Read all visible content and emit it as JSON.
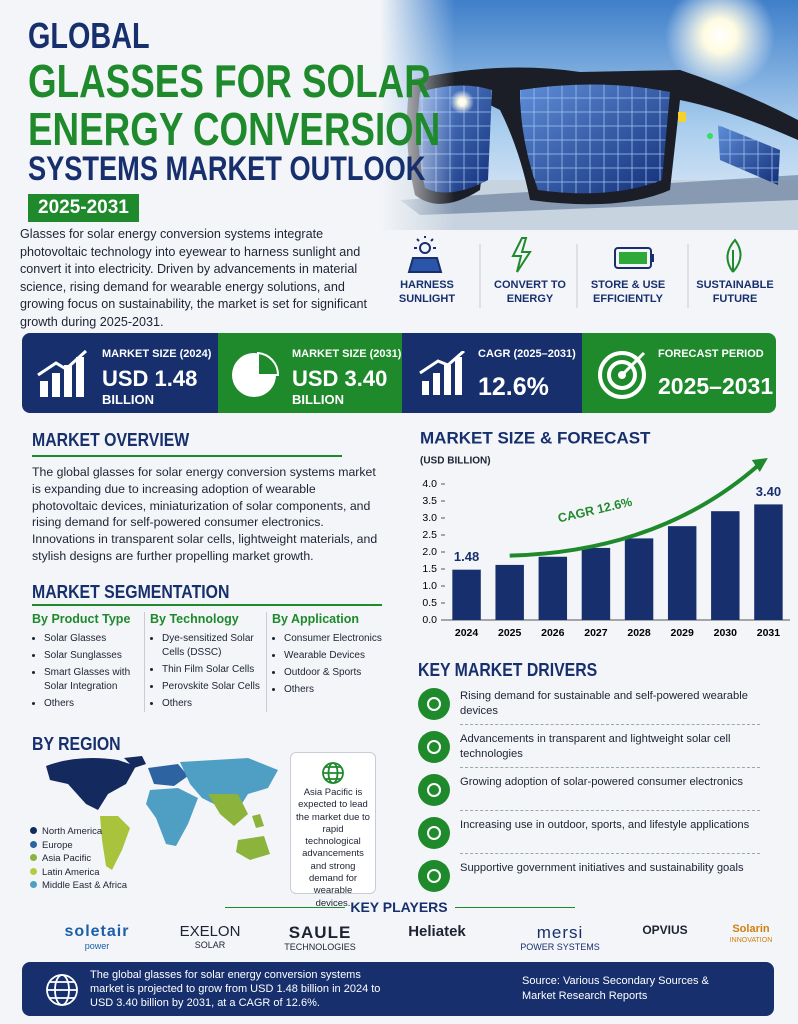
{
  "header": {
    "title_lines": [
      "GLOBAL",
      "GLASSES FOR SOLAR",
      "ENERGY CONVERSION",
      "SYSTEMS MARKET OUTLOOK"
    ],
    "period": "2025-2031",
    "intro": "Glasses for solar energy conversion systems integrate photovoltaic technology into eyewear to harness sunlight and convert it into electricity. Driven by advancements in material science, rising demand for wearable energy solutions, and growing focus on sustainability, the market is set for significant growth during 2025-2031."
  },
  "features": [
    "HARNESS SUNLIGHT",
    "CONVERT TO ENERGY",
    "STORE & USE EFFICIENTLY",
    "SUSTAINABLE FUTURE"
  ],
  "stats": [
    {
      "label": "MARKET SIZE (2024)",
      "value": "USD 1.48",
      "unit": "BILLION"
    },
    {
      "label": "MARKET SIZE (2031)",
      "value": "USD 3.40",
      "unit": "BILLION"
    },
    {
      "label": "CAGR (2025–2031)",
      "value": "12.6%"
    },
    {
      "label": "FORECAST PERIOD",
      "value": "2025–2031"
    }
  ],
  "overview": {
    "title": "MARKET OVERVIEW",
    "text": "The global glasses for solar energy conversion systems market is expanding due to increasing adoption of wearable photovoltaic devices, miniaturization of solar components, and rising demand for self-powered consumer electronics. Innovations in transparent solar cells, lightweight materials, and stylish designs are further propelling market growth."
  },
  "segmentation": {
    "title": "MARKET SEGMENTATION",
    "columns": [
      {
        "heading": "By Product Type",
        "items": [
          "Solar Glasses",
          "Solar Sunglasses",
          "Smart Glasses with Solar Integration",
          "Others"
        ]
      },
      {
        "heading": "By Technology",
        "items": [
          "Dye-sensitized Solar Cells (DSSC)",
          "Thin Film Solar Cells",
          "Perovskite Solar Cells",
          "Others"
        ]
      },
      {
        "heading": "By Application",
        "items": [
          "Consumer Electronics",
          "Wearable Devices",
          "Outdoor & Sports",
          "Others"
        ]
      }
    ]
  },
  "region": {
    "title": "BY REGION",
    "legend": [
      "North America",
      "Europe",
      "Asia Pacific",
      "Latin America",
      "Middle East & Africa"
    ],
    "note": "Asia Pacific is expected to lead the market due to rapid technological advancements and strong demand for wearable devices."
  },
  "chart_data": {
    "type": "bar",
    "title": "MARKET SIZE & FORECAST",
    "y_label": "(USD BILLION)",
    "categories": [
      "2024",
      "2025",
      "2026",
      "2027",
      "2028",
      "2029",
      "2030",
      "2031"
    ],
    "values": [
      1.48,
      1.62,
      1.86,
      2.12,
      2.4,
      2.76,
      3.2,
      3.4
    ],
    "value_labels": [
      "1.48",
      null,
      null,
      null,
      null,
      null,
      null,
      "3.40"
    ],
    "color": "#17306d",
    "ylim": [
      0,
      4
    ],
    "yticks": [
      {
        "value": 0,
        "label": "0.0"
      },
      0.5,
      {
        "value": 1,
        "label": "1.0"
      },
      1.5,
      {
        "value": 2,
        "label": "2.0"
      },
      2.5,
      {
        "value": 3,
        "label": "3.0"
      },
      3.5,
      {
        "value": 4,
        "label": "4.0"
      }
    ],
    "annotation": "CAGR 12.6%"
  },
  "drivers": {
    "title": "KEY MARKET DRIVERS",
    "items": [
      "Rising demand for sustainable and self-powered wearable devices",
      "Advancements in transparent and lightweight solar cell technologies",
      "Growing adoption of solar-powered consumer electronics",
      "Increasing use in outdoor, sports, and lifestyle applications",
      "Supportive government initiatives and sustainability goals"
    ]
  },
  "players": {
    "title": "KEY PLAYERS",
    "items": [
      {
        "name": "soletair",
        "sub": "power"
      },
      {
        "name": "EXELON",
        "sub": "SOLAR"
      },
      {
        "name": "SAULE",
        "sub": "TECHNOLOGIES"
      },
      {
        "name": "Heliatek"
      },
      {
        "name": "mersi",
        "sub": "POWER SYSTEMS"
      },
      {
        "name": "OPVIUS"
      },
      {
        "name": "Solarin",
        "sub": "INNOVATION"
      }
    ]
  },
  "footer": {
    "summary": "The global glasses for solar energy conversion systems market is projected to grow from USD 1.48 billion in 2024 to USD 3.40 billion by 2031, at a CAGR of 12.6%.",
    "source": "Source: Various Secondary Sources & Market Research Reports"
  }
}
